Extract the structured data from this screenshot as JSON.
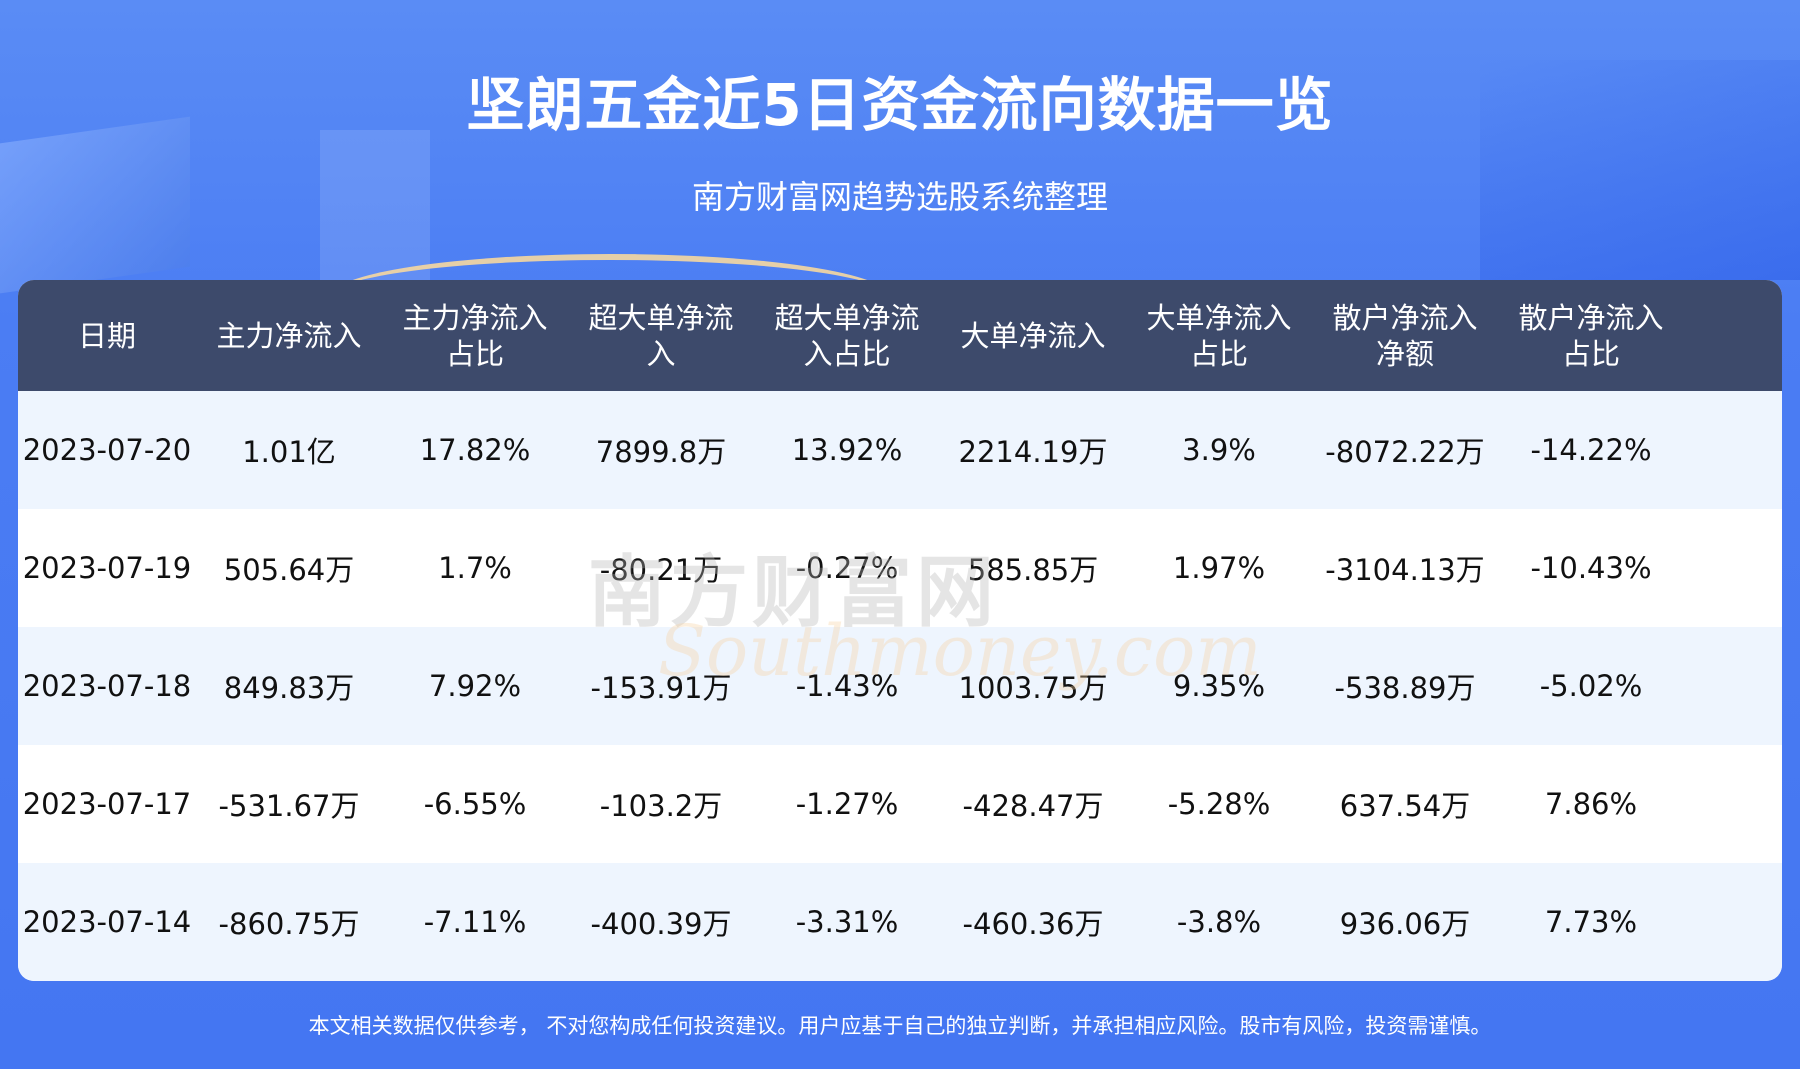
{
  "header": {
    "title": "坚朗五金近5日资金流向数据一览",
    "subtitle": "南方财富网趋势选股系统整理"
  },
  "table": {
    "columns": [
      "日期",
      "主力净流入",
      "主力净流入占比",
      "超大单净流入",
      "超大单净流入占比",
      "大单净流入",
      "大单净流入占比",
      "散户净流入净额",
      "散户净流入占比"
    ],
    "rows": [
      [
        "2023-07-20",
        "1.01亿",
        "17.82%",
        "7899.8万",
        "13.92%",
        "2214.19万",
        "3.9%",
        "-8072.22万",
        "-14.22%"
      ],
      [
        "2023-07-19",
        "505.64万",
        "1.7%",
        "-80.21万",
        "-0.27%",
        "585.85万",
        "1.97%",
        "-3104.13万",
        "-10.43%"
      ],
      [
        "2023-07-18",
        "849.83万",
        "7.92%",
        "-153.91万",
        "-1.43%",
        "1003.75万",
        "9.35%",
        "-538.89万",
        "-5.02%"
      ],
      [
        "2023-07-17",
        "-531.67万",
        "-6.55%",
        "-103.2万",
        "-1.27%",
        "-428.47万",
        "-5.28%",
        "637.54万",
        "7.86%"
      ],
      [
        "2023-07-14",
        "-860.75万",
        "-7.11%",
        "-400.39万",
        "-3.31%",
        "-460.36万",
        "-3.8%",
        "936.06万",
        "7.73%"
      ]
    ]
  },
  "watermark": {
    "cn": "南方财富网",
    "en": "Southmoney.com"
  },
  "footer": {
    "disclaimer": "本文相关数据仅供参考， 不对您构成任何投资建议。用户应基于自己的独立判断，并承担相应风险。股市有风险，投资需谨慎。"
  },
  "colors": {
    "background": "#4476f2",
    "table_header": "#3d4a6b",
    "row_alt": "#eef5fe"
  }
}
